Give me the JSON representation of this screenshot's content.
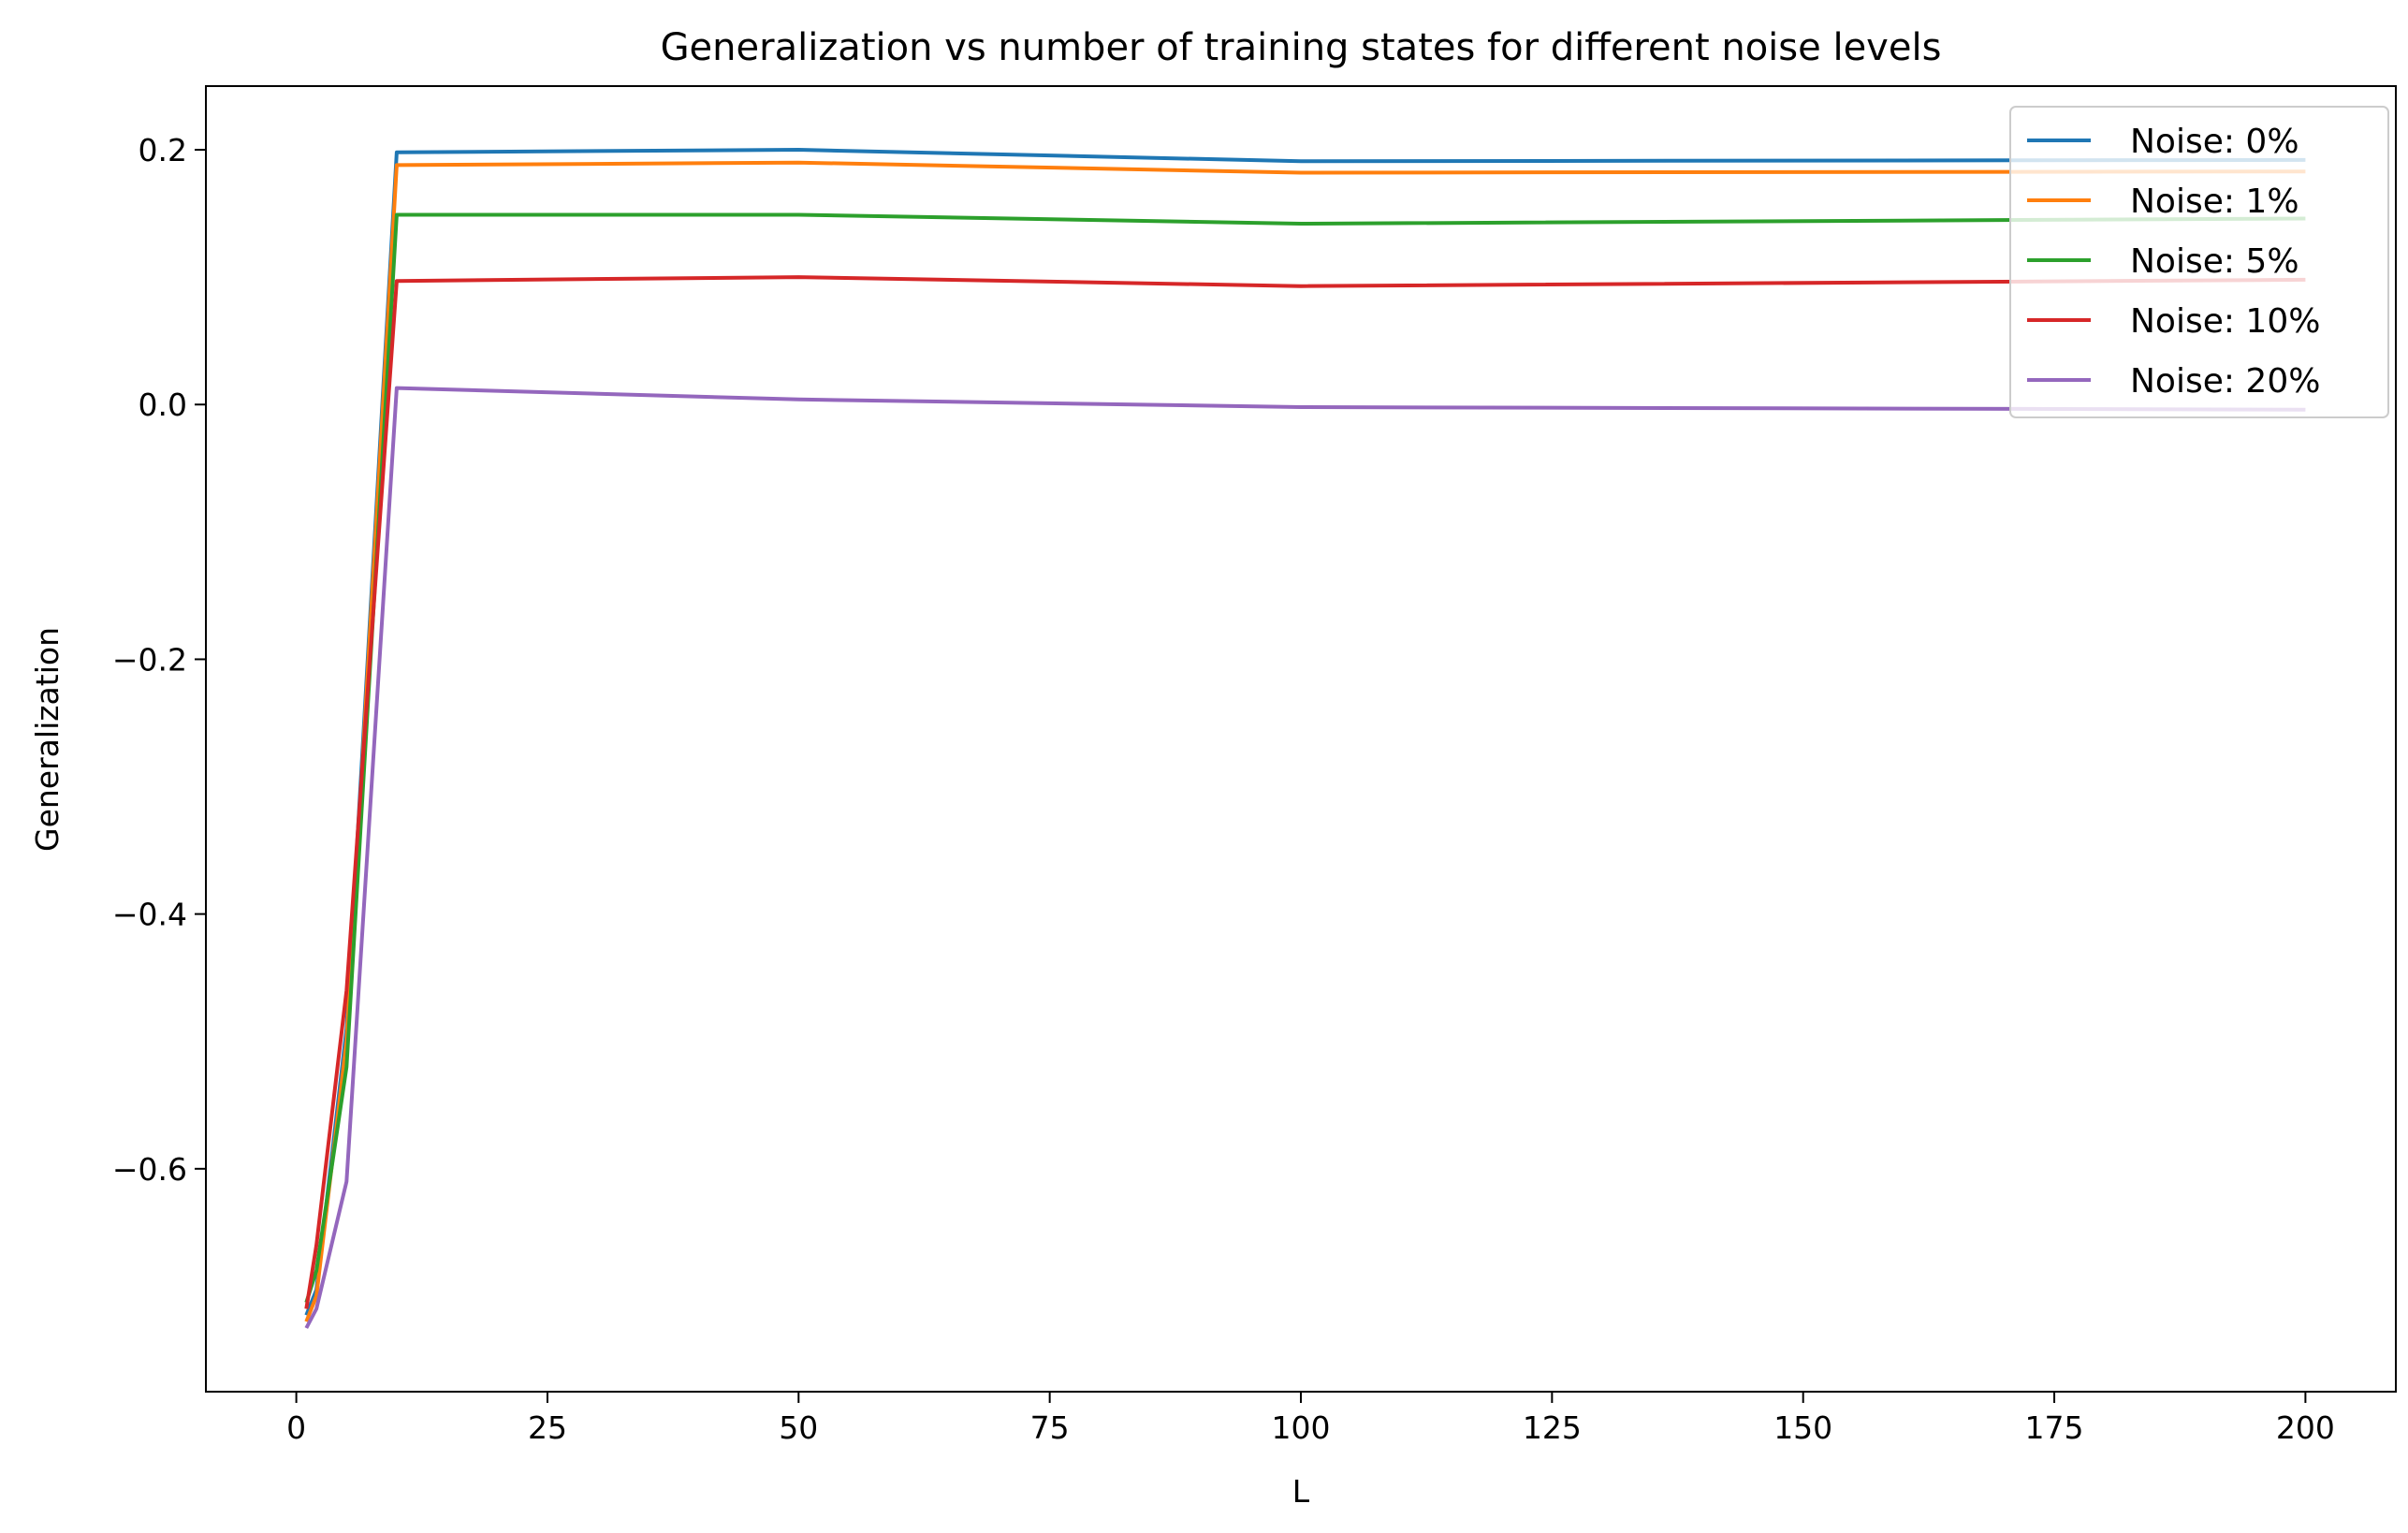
{
  "chart_data": {
    "type": "line",
    "title": "Generalization vs number of training states for different noise levels",
    "xlabel": "L",
    "ylabel": "Generalization",
    "xlim": [
      -9,
      209
    ],
    "ylim": [
      -0.775,
      0.25
    ],
    "xticks": [
      0,
      25,
      50,
      75,
      100,
      125,
      150,
      175,
      200
    ],
    "yticks": [
      0.2,
      0.0,
      -0.2,
      -0.4,
      -0.6
    ],
    "xtick_labels": [
      "0",
      "25",
      "50",
      "75",
      "100",
      "125",
      "150",
      "175",
      "200"
    ],
    "ytick_labels": [
      "0.2",
      "0.0",
      "−0.2",
      "−0.4",
      "−0.6"
    ],
    "grid": false,
    "legend_position": "top-right",
    "x": [
      1,
      2,
      5,
      10,
      50,
      100,
      200
    ],
    "series": [
      {
        "name": "Noise: 0%",
        "color": "#1f77b4",
        "values": [
          -0.715,
          -0.695,
          -0.49,
          0.198,
          0.2,
          0.191,
          0.192
        ]
      },
      {
        "name": "Noise: 1%",
        "color": "#ff7f0e",
        "values": [
          -0.72,
          -0.7,
          -0.5,
          0.188,
          0.19,
          0.182,
          0.183
        ]
      },
      {
        "name": "Noise: 5%",
        "color": "#2ca02c",
        "values": [
          -0.705,
          -0.68,
          -0.52,
          0.149,
          0.149,
          0.142,
          0.146
        ]
      },
      {
        "name": "Noise: 10%",
        "color": "#d62728",
        "values": [
          -0.71,
          -0.66,
          -0.46,
          0.097,
          0.1,
          0.093,
          0.098
        ]
      },
      {
        "name": "Noise: 20%",
        "color": "#9467bd",
        "values": [
          -0.725,
          -0.71,
          -0.61,
          0.013,
          0.004,
          -0.002,
          -0.004
        ]
      }
    ]
  }
}
